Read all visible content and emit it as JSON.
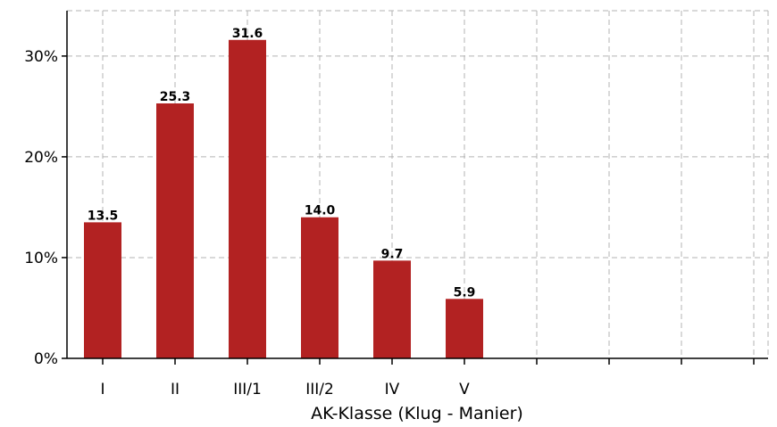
{
  "chart_data": {
    "type": "bar",
    "categories": [
      "I",
      "II",
      "III/1",
      "III/2",
      "IV",
      "V",
      "",
      "",
      "",
      ""
    ],
    "values": [
      13.5,
      25.3,
      31.6,
      14.0,
      9.7,
      5.9,
      null,
      null,
      null,
      null
    ],
    "data_labels": [
      "13.5",
      "25.3",
      "31.6",
      "14.0",
      "9.7",
      "5.9",
      "",
      "",
      "",
      ""
    ],
    "xlabel": "AK-Klasse (Klug - Manier)",
    "ylabel": "",
    "ylim": [
      0,
      34.5
    ],
    "yticks": [
      0,
      10,
      20,
      30
    ],
    "ytick_labels": [
      "0%",
      "10%",
      "20%",
      "30%"
    ],
    "grid": true,
    "legend": "none",
    "bar_color": "#b22222"
  }
}
